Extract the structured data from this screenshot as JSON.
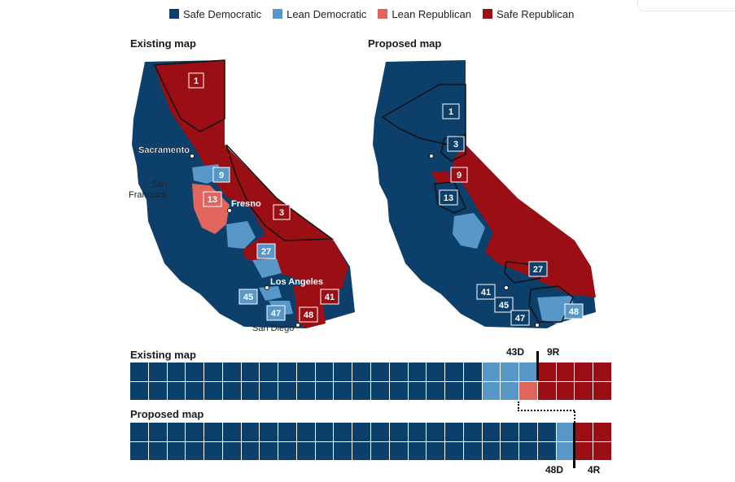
{
  "legend": [
    {
      "label": "Safe Democratic",
      "color": "#0d3f6b"
    },
    {
      "label": "Lean Democratic",
      "color": "#5898c8"
    },
    {
      "label": "Lean Republican",
      "color": "#e0665d"
    },
    {
      "label": "Safe Republican",
      "color": "#9b0f14"
    }
  ],
  "existing_map": {
    "title": "Existing map",
    "district_labels": [
      "1",
      "9",
      "13",
      "3",
      "27",
      "45",
      "47",
      "41",
      "48"
    ],
    "cities": [
      "Sacramento",
      "San",
      "Francisco",
      "Fresno",
      "Los Angeles",
      "San Diego"
    ]
  },
  "proposed_map": {
    "title": "Proposed map",
    "district_labels": [
      "1",
      "3",
      "9",
      "13",
      "27",
      "41",
      "45",
      "47",
      "48"
    ]
  },
  "existing_bar": {
    "title": "Existing map",
    "dem_label": "43D",
    "rep_label": "9R",
    "top_row": [
      "SD",
      "SD",
      "SD",
      "SD",
      "SD",
      "SD",
      "SD",
      "SD",
      "SD",
      "SD",
      "SD",
      "SD",
      "SD",
      "SD",
      "SD",
      "SD",
      "SD",
      "SD",
      "SD",
      "LD",
      "LD",
      "LD",
      "SR",
      "SR",
      "SR",
      "SR"
    ],
    "bottom_row": [
      "SD",
      "SD",
      "SD",
      "SD",
      "SD",
      "SD",
      "SD",
      "SD",
      "SD",
      "SD",
      "SD",
      "SD",
      "SD",
      "SD",
      "SD",
      "SD",
      "SD",
      "SD",
      "SD",
      "LD",
      "LD",
      "LR",
      "SR",
      "SR",
      "SR",
      "SR"
    ]
  },
  "proposed_bar": {
    "title": "Proposed map",
    "dem_label": "48D",
    "rep_label": "4R",
    "top_row": [
      "SD",
      "SD",
      "SD",
      "SD",
      "SD",
      "SD",
      "SD",
      "SD",
      "SD",
      "SD",
      "SD",
      "SD",
      "SD",
      "SD",
      "SD",
      "SD",
      "SD",
      "SD",
      "SD",
      "SD",
      "SD",
      "SD",
      "SD",
      "LD",
      "SR",
      "SR"
    ],
    "bottom_row": [
      "SD",
      "SD",
      "SD",
      "SD",
      "SD",
      "SD",
      "SD",
      "SD",
      "SD",
      "SD",
      "SD",
      "SD",
      "SD",
      "SD",
      "SD",
      "SD",
      "SD",
      "SD",
      "SD",
      "SD",
      "SD",
      "SD",
      "SD",
      "LD",
      "SR",
      "SR"
    ]
  },
  "colors": {
    "SD": "#0d3f6b",
    "LD": "#5898c8",
    "LR": "#e0665d",
    "SR": "#9b0f14"
  }
}
